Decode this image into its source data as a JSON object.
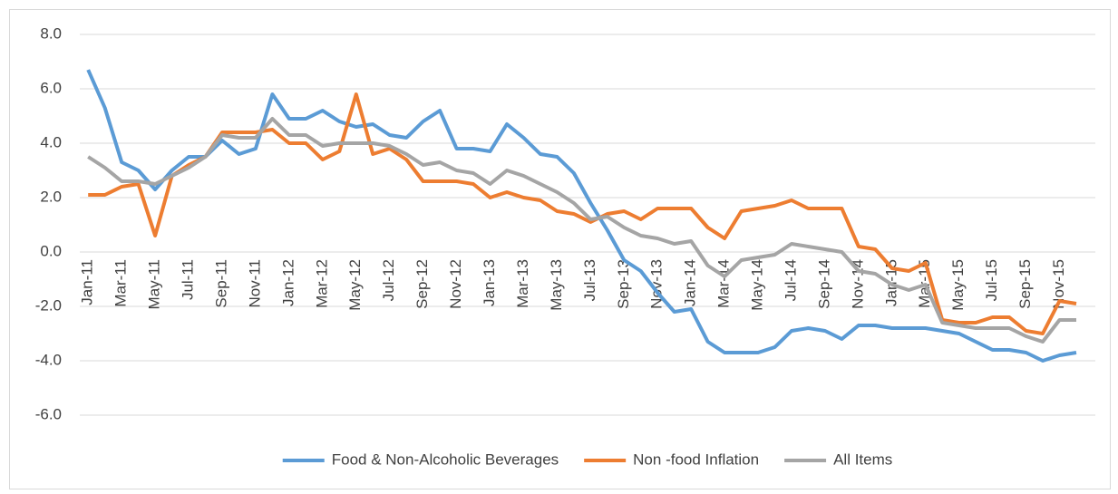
{
  "chart_data": {
    "type": "line",
    "categories": [
      "Jan-11",
      null,
      "Mar-11",
      null,
      "May-11",
      null,
      "Jul-11",
      null,
      "Sep-11",
      null,
      "Nov-11",
      null,
      "Jan-12",
      null,
      "Mar-12",
      null,
      "May-12",
      null,
      "Jul-12",
      null,
      "Sep-12",
      null,
      "Nov-12",
      null,
      "Jan-13",
      null,
      "Mar-13",
      null,
      "May-13",
      null,
      "Jul-13",
      null,
      "Sep-13",
      null,
      "Nov-13",
      null,
      "Jan-14",
      null,
      "Mar-14",
      null,
      "May-14",
      null,
      "Jul-14",
      null,
      "Sep-14",
      null,
      "Nov-14",
      null,
      "Jan-15",
      null,
      "Mar-15",
      null,
      "May-15",
      null,
      "Jul-15",
      null,
      "Sep-15",
      null,
      "Nov-15",
      null
    ],
    "series": [
      {
        "name": "Food & Non-Alcoholic Beverages",
        "color": "#5b9bd5",
        "values": [
          6.7,
          5.3,
          3.3,
          3.0,
          2.3,
          3.0,
          3.5,
          3.5,
          4.1,
          3.6,
          3.8,
          5.8,
          4.9,
          4.9,
          5.2,
          4.8,
          4.6,
          4.7,
          4.3,
          4.2,
          4.8,
          5.2,
          3.8,
          3.8,
          3.7,
          4.7,
          4.2,
          3.6,
          3.5,
          2.9,
          1.8,
          0.8,
          -0.3,
          -0.7,
          -1.5,
          -2.2,
          -2.1,
          -3.3,
          -3.7,
          -3.7,
          -3.7,
          -3.5,
          -2.9,
          -2.8,
          -2.9,
          -3.2,
          -2.7,
          -2.7,
          -2.8,
          -2.8,
          -2.8,
          -2.9,
          -3.0,
          -3.3,
          -3.6,
          -3.6,
          -3.7,
          -4.0,
          -3.8,
          -3.7
        ]
      },
      {
        "name": "Non -food Inflation",
        "color": "#ed7d31",
        "values": [
          2.1,
          2.1,
          2.4,
          2.5,
          0.6,
          2.8,
          3.2,
          3.5,
          4.4,
          4.4,
          4.4,
          4.5,
          4.0,
          4.0,
          3.4,
          3.7,
          5.8,
          3.6,
          3.8,
          3.4,
          2.6,
          2.6,
          2.6,
          2.5,
          2.0,
          2.2,
          2.0,
          1.9,
          1.5,
          1.4,
          1.1,
          1.4,
          1.5,
          1.2,
          1.6,
          1.6,
          1.6,
          0.9,
          0.5,
          1.5,
          1.6,
          1.7,
          1.9,
          1.6,
          1.6,
          1.6,
          0.2,
          0.1,
          -0.6,
          -0.7,
          -0.4,
          -2.5,
          -2.6,
          -2.6,
          -2.4,
          -2.4,
          -2.9,
          -3.0,
          -1.8,
          -1.9
        ]
      },
      {
        "name": "All Items",
        "color": "#a5a5a5",
        "values": [
          3.5,
          3.1,
          2.6,
          2.6,
          2.5,
          2.8,
          3.1,
          3.5,
          4.3,
          4.2,
          4.2,
          4.9,
          4.3,
          4.3,
          3.9,
          4.0,
          4.0,
          4.0,
          3.9,
          3.6,
          3.2,
          3.3,
          3.0,
          2.9,
          2.5,
          3.0,
          2.8,
          2.5,
          2.2,
          1.8,
          1.2,
          1.3,
          0.9,
          0.6,
          0.5,
          0.3,
          0.4,
          -0.5,
          -0.9,
          -0.3,
          -0.2,
          -0.1,
          0.3,
          0.2,
          0.1,
          0.0,
          -0.7,
          -0.8,
          -1.2,
          -1.4,
          -1.2,
          -2.6,
          -2.7,
          -2.8,
          -2.8,
          -2.8,
          -3.1,
          -3.3,
          -2.5,
          -2.5
        ]
      }
    ],
    "ylim": [
      -6,
      8
    ],
    "yticks": [
      {
        "value": -6,
        "label": "-6.0"
      },
      {
        "value": -4,
        "label": "-4.0"
      },
      {
        "value": -2,
        "label": "-2.0"
      },
      {
        "value": 0,
        "label": "0.0"
      },
      {
        "value": 2,
        "label": "2.0"
      },
      {
        "value": 4,
        "label": "4.0"
      },
      {
        "value": 6,
        "label": "6.0"
      },
      {
        "value": 8,
        "label": "8.0"
      }
    ],
    "grid": true,
    "legend": "bottom"
  }
}
